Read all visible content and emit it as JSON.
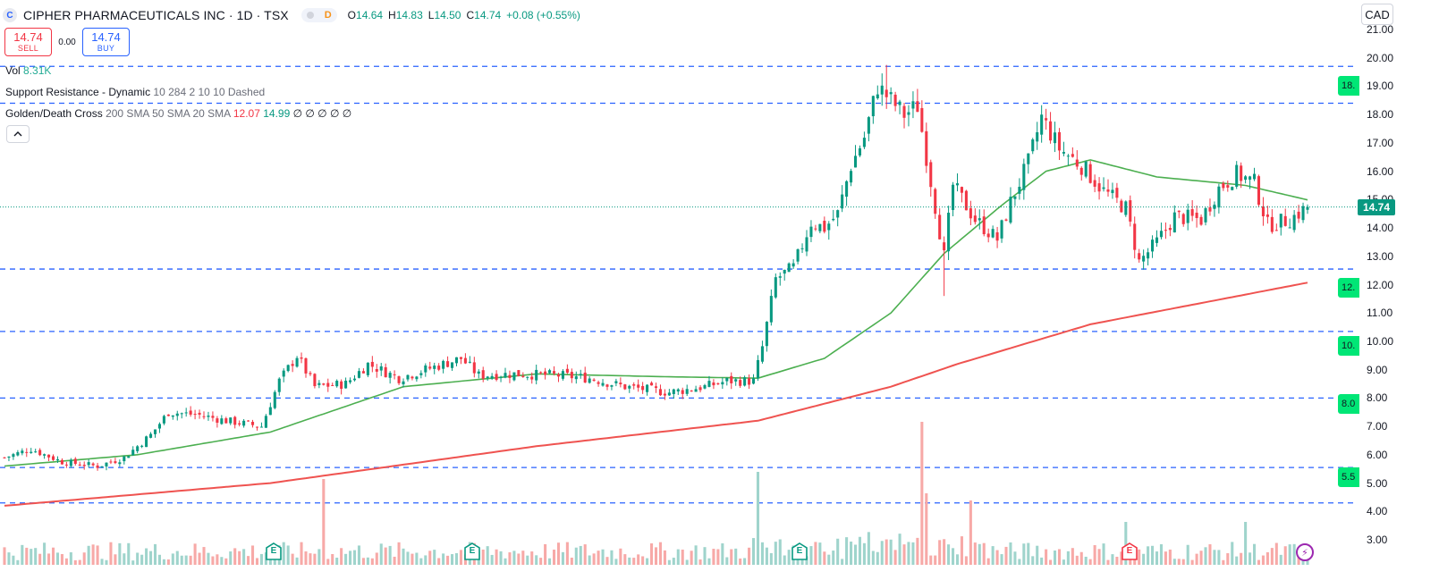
{
  "header": {
    "symbol_letter": "C",
    "title": "CIPHER PHARMACEUTICALS INC · 1D · TSX",
    "interval_badge": "D",
    "ohlc": {
      "o_label": "O",
      "o": "14.64",
      "h_label": "H",
      "h": "14.83",
      "l_label": "L",
      "l": "14.50",
      "c_label": "C",
      "c": "14.74",
      "change": "+0.08 (+0.55%)"
    }
  },
  "trade": {
    "sell_price": "14.74",
    "sell_label": "SELL",
    "spread": "0.00",
    "buy_price": "14.74",
    "buy_label": "BUY"
  },
  "legend": {
    "vol_label": "Vol",
    "vol_value": "8.31K",
    "sr_name": "Support Resistance - Dynamic",
    "sr_params": "10 284 2 10 10 Dashed",
    "gdc_name": "Golden/Death Cross",
    "gdc_params": "200 SMA 50 SMA 20 SMA",
    "gdc_v1": "12.07",
    "gdc_v2": "14.99",
    "gdc_rest": "∅ ∅ ∅ ∅ ∅",
    "collapse_icon": "chevron-up-icon"
  },
  "currency": "CAD",
  "last_price": "14.74",
  "colors": {
    "up": "#089981",
    "down": "#f23645",
    "vol_up": "#9fd4cc",
    "vol_down": "#f7a9a7",
    "sma_fast": "#4caf50",
    "sma_slow": "#ef5350",
    "sr_line": "#2962ff",
    "sr_tag": "#00e676"
  },
  "sr_tags": [
    {
      "label": "18.",
      "price": 19.0
    },
    {
      "label": "12.",
      "price": 11.9
    },
    {
      "label": "10.",
      "price": 9.85
    },
    {
      "label": "8.0",
      "price": 7.8
    },
    {
      "label": "5.5",
      "price": 5.2
    }
  ],
  "events": [
    {
      "label": "E",
      "type": "earnings"
    },
    {
      "label": "E",
      "type": "earnings"
    },
    {
      "label": "E",
      "type": "earnings"
    },
    {
      "label": "E",
      "type": "earnings"
    }
  ],
  "chart_data": {
    "type": "candlestick",
    "y_axis_ticks": [
      "21.00",
      "20.00",
      "19.00",
      "18.00",
      "17.00",
      "16.00",
      "15.00",
      "14.00",
      "13.00",
      "12.00",
      "11.00",
      "10.00",
      "9.00",
      "8.00",
      "7.00",
      "6.00",
      "5.00",
      "4.00",
      "3.00"
    ],
    "ylim": [
      2.75,
      21.2
    ],
    "support_resistance_levels": [
      19.7,
      18.4,
      12.55,
      10.35,
      8.0,
      5.55,
      4.3
    ],
    "keyframes": [
      {
        "i": 0,
        "c": 5.9
      },
      {
        "i": 6,
        "c": 6.2
      },
      {
        "i": 13,
        "c": 5.75
      },
      {
        "i": 21,
        "c": 5.6
      },
      {
        "i": 27,
        "c": 5.9
      },
      {
        "i": 33,
        "c": 6.7
      },
      {
        "i": 37,
        "c": 7.5
      },
      {
        "i": 44,
        "c": 7.4
      },
      {
        "i": 50,
        "c": 7.2
      },
      {
        "i": 58,
        "c": 7.0
      },
      {
        "i": 62,
        "c": 8.6
      },
      {
        "i": 66,
        "c": 9.5
      },
      {
        "i": 70,
        "c": 8.4
      },
      {
        "i": 77,
        "c": 8.5
      },
      {
        "i": 82,
        "c": 9.2
      },
      {
        "i": 89,
        "c": 8.7
      },
      {
        "i": 97,
        "c": 9.1
      },
      {
        "i": 103,
        "c": 9.4
      },
      {
        "i": 107,
        "c": 8.8
      },
      {
        "i": 115,
        "c": 8.85
      },
      {
        "i": 125,
        "c": 8.8
      },
      {
        "i": 132,
        "c": 8.7
      },
      {
        "i": 140,
        "c": 8.4
      },
      {
        "i": 150,
        "c": 8.2
      },
      {
        "i": 158,
        "c": 8.4
      },
      {
        "i": 163,
        "c": 8.6
      },
      {
        "i": 169,
        "c": 8.6
      },
      {
        "i": 171,
        "c": 9.8
      },
      {
        "i": 174,
        "c": 12.2
      },
      {
        "i": 178,
        "c": 12.6
      },
      {
        "i": 182,
        "c": 14.2
      },
      {
        "i": 185,
        "c": 14.0
      },
      {
        "i": 188,
        "c": 14.5
      },
      {
        "i": 191,
        "c": 16.2
      },
      {
        "i": 194,
        "c": 17.2
      },
      {
        "i": 197,
        "c": 19.0
      },
      {
        "i": 200,
        "c": 18.5
      },
      {
        "i": 203,
        "c": 18.0
      },
      {
        "i": 206,
        "c": 18.3
      },
      {
        "i": 212,
        "c": 13.0
      },
      {
        "i": 214,
        "c": 15.5
      },
      {
        "i": 219,
        "c": 14.3
      },
      {
        "i": 224,
        "c": 13.6
      },
      {
        "i": 227,
        "c": 14.9
      },
      {
        "i": 231,
        "c": 16.3
      },
      {
        "i": 234,
        "c": 17.9
      },
      {
        "i": 238,
        "c": 16.8
      },
      {
        "i": 243,
        "c": 16.2
      },
      {
        "i": 248,
        "c": 15.3
      },
      {
        "i": 253,
        "c": 14.7
      },
      {
        "i": 256,
        "c": 12.8
      },
      {
        "i": 260,
        "c": 13.5
      },
      {
        "i": 264,
        "c": 14.4
      },
      {
        "i": 270,
        "c": 14.3
      },
      {
        "i": 274,
        "c": 15.4
      },
      {
        "i": 278,
        "c": 15.9
      },
      {
        "i": 282,
        "c": 15.6
      },
      {
        "i": 285,
        "c": 14.1
      },
      {
        "i": 290,
        "c": 14.3
      },
      {
        "i": 294,
        "c": 14.74
      }
    ],
    "sma50": [
      {
        "i": 0,
        "v": 5.6
      },
      {
        "i": 30,
        "v": 6.0
      },
      {
        "i": 60,
        "v": 6.8
      },
      {
        "i": 90,
        "v": 8.4
      },
      {
        "i": 120,
        "v": 8.85
      },
      {
        "i": 150,
        "v": 8.75
      },
      {
        "i": 170,
        "v": 8.7
      },
      {
        "i": 185,
        "v": 9.4
      },
      {
        "i": 200,
        "v": 11.0
      },
      {
        "i": 212,
        "v": 13.1
      },
      {
        "i": 225,
        "v": 14.8
      },
      {
        "i": 235,
        "v": 16.0
      },
      {
        "i": 245,
        "v": 16.4
      },
      {
        "i": 260,
        "v": 15.8
      },
      {
        "i": 280,
        "v": 15.5
      },
      {
        "i": 294,
        "v": 14.99
      }
    ],
    "sma200": [
      {
        "i": 0,
        "v": 4.2
      },
      {
        "i": 60,
        "v": 5.0
      },
      {
        "i": 120,
        "v": 6.3
      },
      {
        "i": 170,
        "v": 7.2
      },
      {
        "i": 200,
        "v": 8.4
      },
      {
        "i": 215,
        "v": 9.2
      },
      {
        "i": 245,
        "v": 10.6
      },
      {
        "i": 275,
        "v": 11.5
      },
      {
        "i": 294,
        "v": 12.07
      }
    ],
    "volume_spikes": [
      {
        "i": 72,
        "h": 0.6
      },
      {
        "i": 170,
        "h": 0.65
      },
      {
        "i": 207,
        "h": 1.0
      },
      {
        "i": 208,
        "h": 0.5
      },
      {
        "i": 218,
        "h": 0.45
      },
      {
        "i": 253,
        "h": 0.3
      },
      {
        "i": 170,
        "h": 0.6
      },
      {
        "i": 280,
        "h": 0.3
      }
    ]
  }
}
